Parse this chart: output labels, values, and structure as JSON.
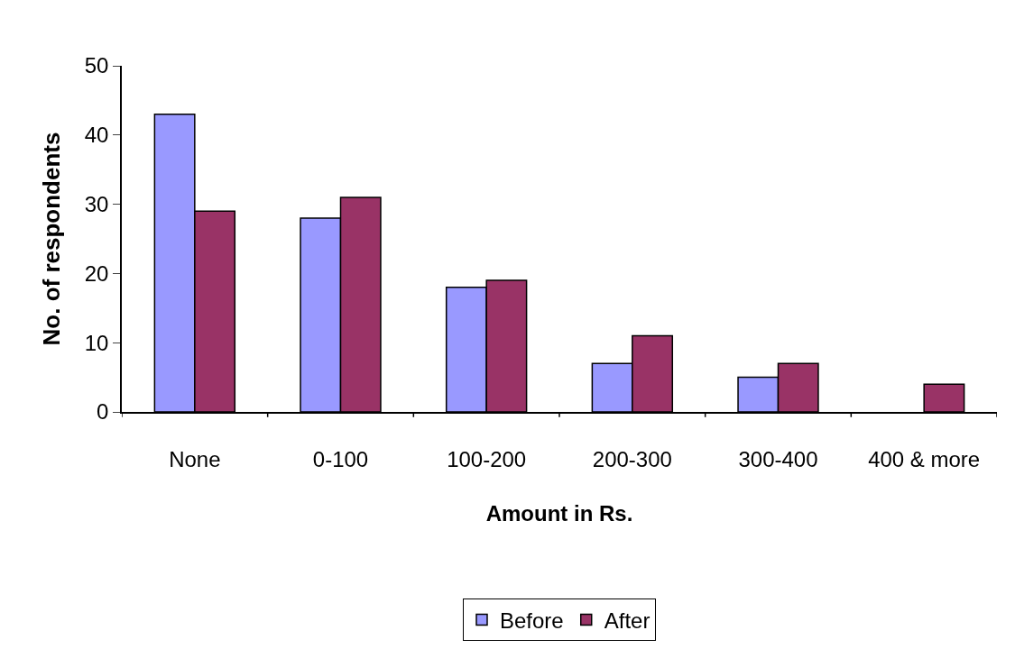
{
  "chart_data": {
    "type": "bar",
    "xlabel": "Amount in Rs.",
    "ylabel": "No. of respondents",
    "categories": [
      "None",
      "0-100",
      "100-200",
      "200-300",
      "300-400",
      "400 & more"
    ],
    "series": [
      {
        "name": "Before",
        "color": "#9999ff",
        "values": [
          43,
          28,
          18,
          7,
          5,
          null
        ]
      },
      {
        "name": "After",
        "color": "#993366",
        "values": [
          29,
          31,
          19,
          11,
          7,
          4
        ]
      }
    ],
    "ylim": [
      0,
      50
    ],
    "yticks": [
      0,
      10,
      20,
      30,
      40,
      50
    ],
    "legend": "bottom"
  }
}
